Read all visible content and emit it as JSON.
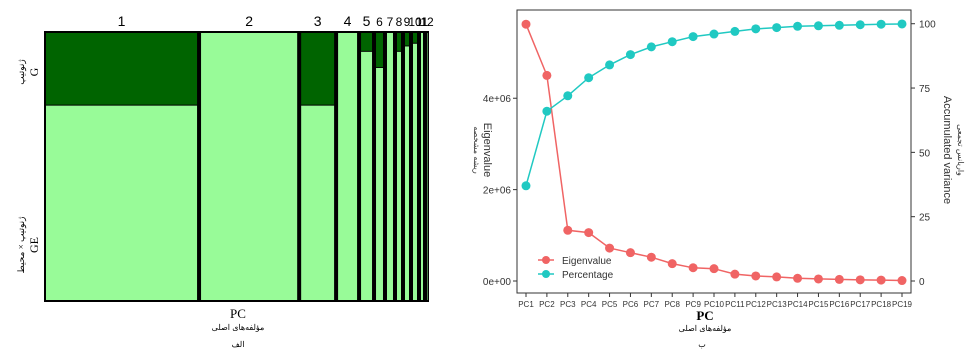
{
  "chart_data": [
    {
      "type": "mosaic",
      "panel_label": "a",
      "xlabel": "PC",
      "xlabel_fa": "مؤلفه‌های اصلی",
      "categories": [
        "1",
        "2",
        "3",
        "4",
        "5",
        "6",
        "7",
        "8",
        "9",
        "10",
        "11",
        "12"
      ],
      "top_labels": [
        "1",
        "2",
        "3",
        "4",
        "5",
        "6",
        "7",
        "8",
        "9",
        "10",
        "11",
        "12"
      ],
      "segments": [
        {
          "name": "G",
          "label_fa": "ژنوتیپ",
          "color": "#006400"
        },
        {
          "name": "GE",
          "label_fa": "ژنوتیپ × محیط",
          "color": "#98fb98"
        }
      ],
      "column_widths": [
        0.3825,
        0.2452,
        0.0873,
        0.0524,
        0.0324,
        0.0224,
        0.02,
        0.015,
        0.015,
        0.015,
        0.01,
        0.005
      ],
      "g_fraction": [
        0.27,
        0.0,
        0.27,
        0.0,
        0.07,
        0.13,
        0.0,
        0.07,
        0.05,
        0.04,
        0.0,
        0.0
      ]
    },
    {
      "type": "line",
      "panel_label": "b",
      "xlabel": "PC",
      "xlabel_fa": "مؤلفه‌های اصلی",
      "ylabel_left": "Eigenvalue",
      "ylabel_left_fa": "ریشه مشخصه",
      "ylabel_right": "Accumulated variance",
      "ylabel_right_fa": "واریانس تجمعی",
      "x": [
        "PC1",
        "PC2",
        "PC3",
        "PC4",
        "PC5",
        "PC6",
        "PC7",
        "PC8",
        "PC9",
        "PC10",
        "PC11",
        "PC12",
        "PC13",
        "PC14",
        "PC15",
        "PC16",
        "PC17",
        "PC18",
        "PC19"
      ],
      "ylim_left": [
        0,
        5800000
      ],
      "yticks_left": [
        "0e+00",
        "2e+06",
        "4e+06"
      ],
      "ylim_right": [
        0,
        103
      ],
      "yticks_right": [
        "0",
        "25",
        "50",
        "75",
        "100"
      ],
      "legend_position": "bottom-left",
      "series": [
        {
          "name": "Eigenvalue",
          "axis": "left",
          "color": "#f06464",
          "values": [
            5620000,
            4500000,
            1110000,
            1060000,
            720000,
            620000,
            520000,
            380000,
            290000,
            270000,
            150000,
            110000,
            90000,
            60000,
            45000,
            35000,
            25000,
            20000,
            10000
          ]
        },
        {
          "name": "Percentage",
          "axis": "right",
          "color": "#20c9c2",
          "values": [
            37,
            66,
            72,
            79,
            84,
            88,
            91,
            93,
            95,
            96,
            97,
            98,
            98.5,
            99,
            99.2,
            99.4,
            99.6,
            99.8,
            99.9
          ]
        }
      ]
    }
  ],
  "captions": {
    "a_fa": "الف",
    "b_fa": "ب"
  }
}
